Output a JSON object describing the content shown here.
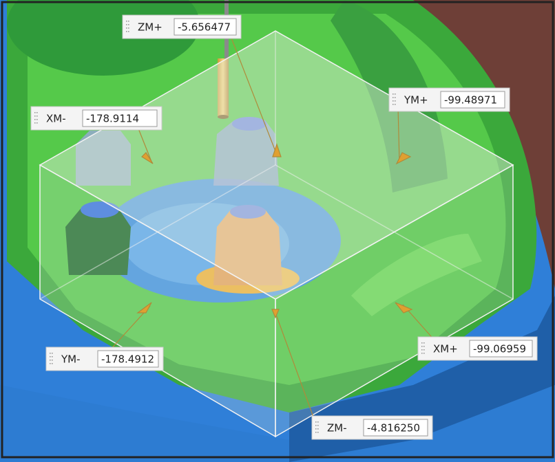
{
  "labels": [
    {
      "name": "ZM+",
      "value": "-5.656477"
    },
    {
      "name": "XM-",
      "value": "-178.9114"
    },
    {
      "name": "YM+",
      "value": "-99.48971"
    },
    {
      "name": "YM-",
      "value": "-178.4912"
    },
    {
      "name": "XM+",
      "value": "-99.06959"
    },
    {
      "name": "ZM-",
      "value": "-4.816250"
    }
  ]
}
